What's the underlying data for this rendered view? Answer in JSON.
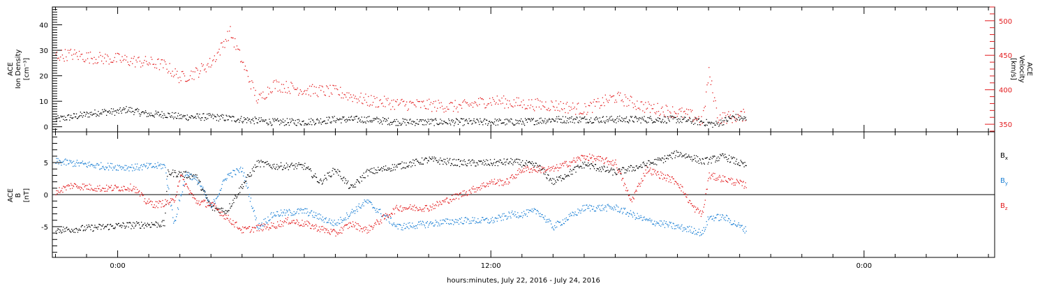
{
  "x_axis": {
    "title": "hours:minutes, July 22, 2016 - July 24, 2016",
    "ticks": [
      {
        "label": "0:00",
        "hour": 0
      },
      {
        "label": "12:00",
        "hour": 12
      },
      {
        "label": "0:00",
        "hour": 24
      }
    ],
    "range_hours": [
      -2.1,
      28.2
    ],
    "data_end_hour": 20.2
  },
  "colors": {
    "black": "#000000",
    "red": "#e31a1c",
    "blue": "#1a7fd4"
  },
  "chart_data": [
    {
      "type": "scatter",
      "panel": "top",
      "left_axis": {
        "label_lines": [
          "ACE",
          "Ion Density",
          "[cm⁻³]"
        ],
        "ylim": [
          -2,
          47
        ],
        "ticks": [
          0,
          10,
          20,
          30,
          40
        ],
        "tick_labels": [
          "0",
          "10",
          "20",
          "30",
          "40"
        ]
      },
      "right_axis": {
        "label_lines": [
          "ACE",
          "Velocity",
          "[km/s]"
        ],
        "ylim": [
          339,
          520
        ],
        "ticks": [
          350,
          400,
          450,
          500
        ],
        "tick_labels": [
          "350",
          "400",
          "450",
          "500"
        ]
      },
      "series": [
        {
          "color": "black",
          "axis": "left",
          "x_hours": [
            -2.0,
            -1.5,
            -1.0,
            -0.5,
            0.0,
            0.3,
            0.6,
            1.0,
            1.5,
            2.0,
            3.0,
            4.0,
            5.0,
            6.0,
            7.0,
            8.0,
            9.0,
            10.0,
            11.0,
            12.0,
            13.0,
            14.0,
            15.0,
            16.0,
            17.0,
            18.0,
            18.8,
            19.2,
            19.8,
            20.2
          ],
          "values": [
            3,
            4,
            5,
            6,
            6,
            7,
            6,
            5,
            5,
            4,
            4,
            3,
            2,
            2,
            3,
            3,
            2,
            2,
            2,
            2,
            2,
            3,
            3,
            3,
            3,
            3,
            2,
            1,
            4,
            3
          ]
        },
        {
          "color": "red",
          "axis": "right",
          "x_hours": [
            -2.0,
            -1.5,
            -1.0,
            -0.5,
            0.0,
            0.5,
            1.0,
            1.5,
            2.0,
            2.5,
            3.0,
            3.3,
            3.6,
            4.0,
            4.5,
            5.0,
            6.0,
            7.0,
            8.0,
            9.0,
            10.0,
            11.0,
            12.0,
            13.0,
            14.0,
            15.0,
            16.0,
            17.0,
            18.0,
            18.5,
            18.8,
            19.0,
            19.3,
            20.0,
            20.2
          ],
          "values": [
            450,
            452,
            448,
            446,
            445,
            442,
            440,
            436,
            418,
            425,
            440,
            460,
            485,
            440,
            385,
            408,
            400,
            398,
            385,
            380,
            378,
            376,
            385,
            380,
            378,
            372,
            390,
            375,
            368,
            362,
            355,
            425,
            360,
            362,
            365
          ]
        }
      ]
    },
    {
      "type": "scatter",
      "panel": "bottom",
      "left_axis": {
        "label_lines": [
          "ACE",
          "B",
          "[nT]"
        ],
        "ylim": [
          -9.8,
          9.8
        ],
        "ticks": [
          -5,
          0,
          5
        ],
        "tick_labels": [
          "-5",
          "0",
          "5"
        ]
      },
      "zero_line": true,
      "legend": {
        "position": "right",
        "entries": [
          "Bx",
          "By",
          "Bz"
        ],
        "main": "B",
        "subs": [
          "x",
          "y",
          "z"
        ]
      },
      "series": [
        {
          "name": "Bx",
          "color": "black",
          "x_hours": [
            -2.0,
            -1.0,
            0.0,
            1.0,
            1.5,
            1.6,
            2.5,
            3.0,
            3.5,
            4.0,
            4.5,
            5.0,
            6.0,
            6.5,
            7.0,
            7.5,
            8.0,
            9.0,
            10.0,
            11.0,
            12.0,
            12.7,
            13.5,
            14.0,
            15.0,
            16.0,
            16.8,
            17.5,
            18.0,
            18.5,
            18.8,
            19.5,
            20.2
          ],
          "values": [
            -5.5,
            -5.2,
            -4.8,
            -4.6,
            -4.5,
            3.5,
            3.0,
            -2.0,
            -2.5,
            1.5,
            5.0,
            4.5,
            4.5,
            2.0,
            4.0,
            1.0,
            3.5,
            4.5,
            5.5,
            5.0,
            5.0,
            5.2,
            4.5,
            2.0,
            4.8,
            3.5,
            4.5,
            5.5,
            6.5,
            5.8,
            5.2,
            6.0,
            4.5
          ]
        },
        {
          "name": "By",
          "color": "blue",
          "x_hours": [
            -2.0,
            -1.5,
            -0.5,
            0.5,
            1.5,
            1.8,
            2.2,
            2.6,
            3.0,
            3.5,
            4.0,
            4.5,
            5.0,
            6.0,
            7.0,
            8.0,
            9.0,
            10.0,
            11.0,
            12.0,
            12.7,
            13.0,
            13.5,
            14.0,
            15.0,
            16.0,
            17.0,
            18.0,
            18.5,
            18.8,
            19.0,
            19.5,
            20.2
          ],
          "values": [
            5.2,
            5.0,
            4.5,
            4.3,
            4.6,
            -4.5,
            3.5,
            2.0,
            -2.0,
            3.0,
            4.0,
            -5.0,
            -3.0,
            -2.5,
            -4.5,
            -1.0,
            -5.0,
            -4.5,
            -4.0,
            -4.0,
            -3.0,
            -3.0,
            -2.5,
            -5.0,
            -2.0,
            -2.0,
            -4.0,
            -5.0,
            -5.5,
            -6.0,
            -3.5,
            -3.5,
            -5.5
          ]
        },
        {
          "name": "Bz",
          "color": "red",
          "x_hours": [
            -2.0,
            -1.5,
            -0.5,
            0.5,
            0.9,
            1.2,
            1.8,
            2.0,
            2.5,
            3.0,
            4.0,
            5.0,
            5.5,
            6.0,
            7.0,
            7.5,
            8.0,
            9.0,
            10.0,
            11.0,
            12.0,
            12.5,
            13.0,
            14.0,
            15.0,
            16.0,
            16.5,
            17.0,
            18.0,
            18.5,
            18.8,
            19.0,
            19.5,
            20.2
          ],
          "values": [
            0.5,
            1.5,
            1.0,
            1.2,
            -1.0,
            -1.5,
            -1.0,
            3.0,
            -1.0,
            -1.5,
            -5.5,
            -4.8,
            -4.0,
            -4.5,
            -6.0,
            -4.5,
            -5.5,
            -2.0,
            -2.0,
            0.0,
            2.0,
            2.0,
            4.0,
            4.0,
            6.0,
            5.0,
            -1.0,
            4.0,
            2.0,
            -2.0,
            -3.0,
            3.0,
            2.5,
            1.5
          ]
        }
      ]
    }
  ]
}
